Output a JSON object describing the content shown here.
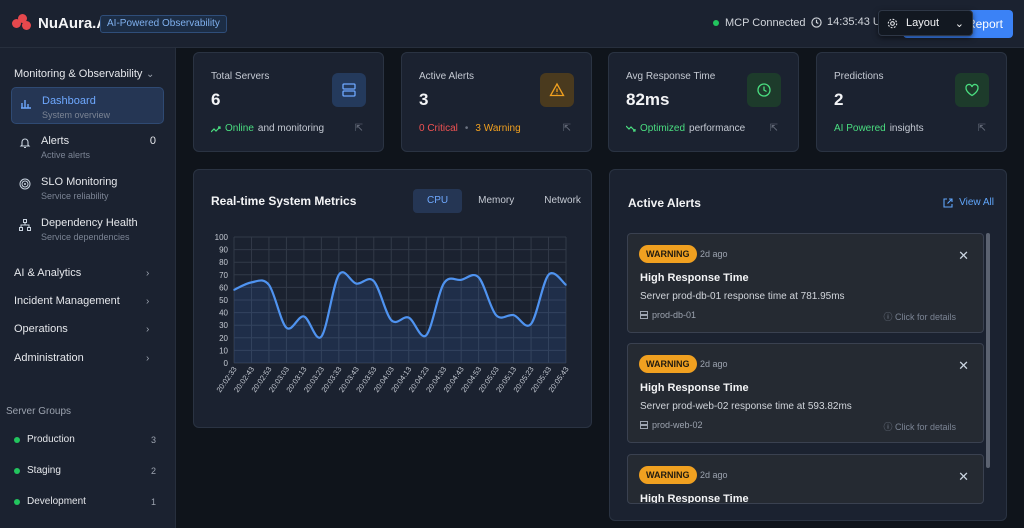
{
  "app": {
    "name": "NuAura.Ai",
    "tagline": "AI-Powered Observability"
  },
  "header": {
    "mcp_status": "MCP Connected",
    "time": "14:35:43 U",
    "report_label": "Report",
    "layout_label": "Layout"
  },
  "sidebar": {
    "section_main": "Monitoring & Observability",
    "items": [
      {
        "label": "Dashboard",
        "sub": "System overview"
      },
      {
        "label": "Alerts",
        "sub": "Active alerts",
        "badge": "0"
      },
      {
        "label": "SLO Monitoring",
        "sub": "Service reliability"
      },
      {
        "label": "Dependency Health",
        "sub": "Service dependencies"
      }
    ],
    "sections": [
      "AI & Analytics",
      "Incident Management",
      "Operations",
      "Administration"
    ],
    "server_groups_title": "Server Groups",
    "groups": [
      {
        "name": "Production",
        "count": "3"
      },
      {
        "name": "Staging",
        "count": "2"
      },
      {
        "name": "Development",
        "count": "1"
      }
    ]
  },
  "stats": [
    {
      "label": "Total Servers",
      "value": "6",
      "foot_strong": "Online",
      "foot_rest": "and monitoring",
      "icon": "server-icon"
    },
    {
      "label": "Active Alerts",
      "value": "3",
      "foot_critical": "0 Critical",
      "foot_sep": "•",
      "foot_warning": "3 Warning",
      "icon": "warning-icon"
    },
    {
      "label": "Avg Response Time",
      "value": "82ms",
      "foot_strong": "Optimized",
      "foot_rest": "performance",
      "icon": "clock-icon"
    },
    {
      "label": "Predictions",
      "value": "2",
      "foot_strong": "AI Powered",
      "foot_rest": "insights",
      "icon": "heart-icon"
    }
  ],
  "colors": {
    "accent": "#3b82f6",
    "success": "#4ade80",
    "critical": "#f05252",
    "warning": "#f0a020"
  },
  "metrics": {
    "title": "Real-time System Metrics",
    "tabs": [
      "CPU",
      "Memory",
      "Network"
    ],
    "active_tab": "CPU"
  },
  "chart_data": {
    "type": "area",
    "title": "",
    "xlabel": "",
    "ylabel": "",
    "ylim": [
      0,
      100
    ],
    "yticks": [
      0,
      10,
      20,
      30,
      40,
      50,
      60,
      70,
      80,
      90,
      100
    ],
    "grid": true,
    "x": [
      "20:02:33",
      "20:02:43",
      "20:02:53",
      "20:03:03",
      "20:03:13",
      "20:03:23",
      "20:03:33",
      "20:03:43",
      "20:03:53",
      "20:04:03",
      "20:04:13",
      "20:04:23",
      "20:04:33",
      "20:04:43",
      "20:04:53",
      "20:05:03",
      "20:05:13",
      "20:05:23",
      "20:05:33",
      "20:05:43"
    ],
    "series": [
      {
        "values": [
          58,
          64,
          62,
          28,
          37,
          21,
          70,
          63,
          65,
          34,
          36,
          22,
          63,
          66,
          68,
          38,
          38,
          31,
          70,
          62
        ]
      }
    ]
  },
  "alerts_panel": {
    "title": "Active Alerts",
    "view_all": "View All",
    "details_label": "Click for details",
    "items": [
      {
        "level": "WARNING",
        "ago": "2d ago",
        "title": "High Response Time",
        "desc": "Server prod-db-01 response time at 781.95ms",
        "host": "prod-db-01"
      },
      {
        "level": "WARNING",
        "ago": "2d ago",
        "title": "High Response Time",
        "desc": "Server prod-web-02 response time at 593.82ms",
        "host": "prod-web-02"
      },
      {
        "level": "WARNING",
        "ago": "2d ago",
        "title": "High Response Time",
        "desc": "",
        "host": ""
      }
    ]
  }
}
